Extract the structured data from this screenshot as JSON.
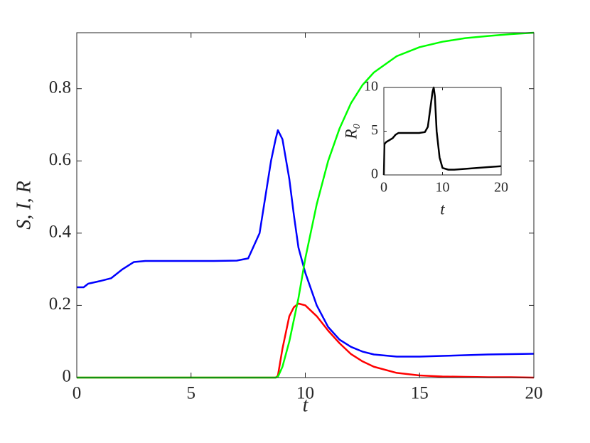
{
  "chart_data": [
    {
      "type": "line",
      "x_label": "t",
      "y_label": "S, I, R",
      "x": [
        0,
        0.3,
        0.5,
        1,
        1.5,
        2,
        2.5,
        3,
        4,
        5,
        6,
        7,
        7.5,
        8,
        8.5,
        8.7,
        8.8,
        9,
        9.3,
        9.5,
        9.7,
        10,
        10.5,
        11,
        11.5,
        12,
        12.5,
        13,
        14,
        15,
        16,
        17,
        18,
        19,
        20
      ],
      "series": [
        {
          "color": "#0000ff",
          "values": [
            0.25,
            0.25,
            0.26,
            0.267,
            0.275,
            0.3,
            0.32,
            0.323,
            0.323,
            0.323,
            0.323,
            0.324,
            0.33,
            0.4,
            0.6,
            0.66,
            0.685,
            0.66,
            0.55,
            0.45,
            0.36,
            0.29,
            0.2,
            0.14,
            0.105,
            0.085,
            0.072,
            0.064,
            0.058,
            0.058,
            0.06,
            0.062,
            0.064,
            0.065,
            0.066
          ]
        },
        {
          "color": "#ff0000",
          "values": [
            0,
            0,
            0,
            0,
            0,
            0,
            0,
            0,
            0,
            0,
            0,
            0,
            0,
            0,
            0,
            0,
            0.005,
            0.08,
            0.17,
            0.195,
            0.205,
            0.2,
            0.17,
            0.13,
            0.095,
            0.065,
            0.045,
            0.03,
            0.013,
            0.006,
            0.003,
            0.002,
            0.001,
            0.001,
            0
          ]
        },
        {
          "color": "#00ff00",
          "values": [
            0,
            0,
            0,
            0,
            0,
            0,
            0,
            0,
            0,
            0,
            0,
            0,
            0,
            0,
            0,
            0,
            0.002,
            0.03,
            0.1,
            0.16,
            0.22,
            0.33,
            0.48,
            0.6,
            0.69,
            0.76,
            0.81,
            0.845,
            0.89,
            0.915,
            0.93,
            0.94,
            0.946,
            0.951,
            0.955
          ]
        }
      ],
      "xlim": [
        0,
        20
      ],
      "ylim": [
        0,
        0.955
      ],
      "xticks": [
        0,
        5,
        10,
        15,
        20
      ],
      "yticks": [
        0,
        0.2,
        0.4,
        0.6,
        0.8
      ]
    },
    {
      "type": "line",
      "x_label": "t",
      "y_label": "R₀",
      "x": [
        0,
        0.1,
        0.3,
        0.5,
        1,
        1.5,
        2,
        2.5,
        3,
        4,
        5,
        6,
        7,
        7.5,
        8,
        8.3,
        8.5,
        8.7,
        9,
        9.5,
        10,
        11,
        12,
        14,
        16,
        18,
        20
      ],
      "series": [
        {
          "color": "#000000",
          "values": [
            0,
            3.5,
            3.7,
            3.8,
            4.0,
            4.2,
            4.6,
            4.8,
            4.8,
            4.8,
            4.8,
            4.8,
            4.9,
            5.5,
            8,
            9.5,
            10,
            9,
            5,
            2,
            0.8,
            0.6,
            0.6,
            0.7,
            0.8,
            0.9,
            1.0
          ]
        }
      ],
      "xlim": [
        0,
        20
      ],
      "ylim": [
        0,
        10
      ],
      "xticks": [
        0,
        10,
        20
      ],
      "yticks": [
        0,
        5,
        10
      ]
    }
  ]
}
